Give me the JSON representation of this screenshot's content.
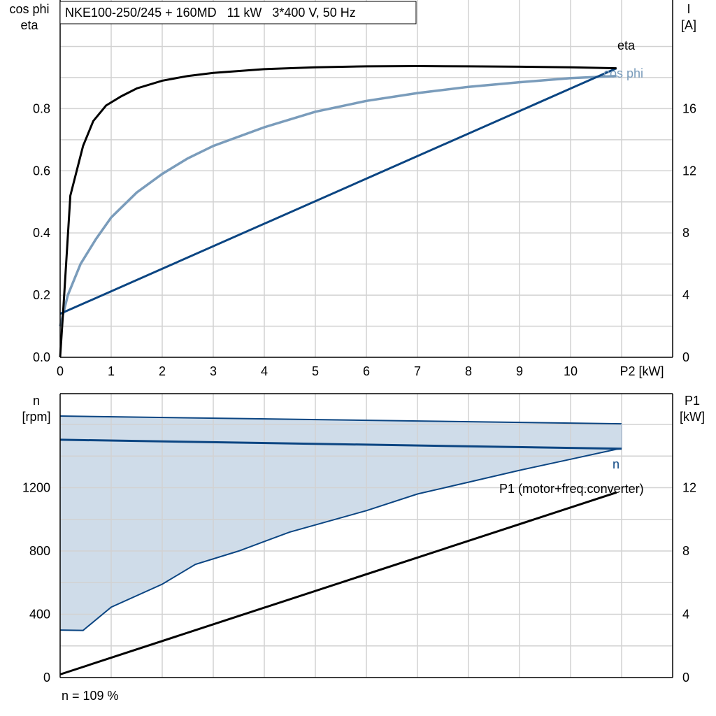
{
  "colors": {
    "eta": "#000000",
    "cos_phi": "#7a9cbb",
    "current": "#0b4582",
    "n": "#0b4582",
    "n_band_fill": "#cfdce9",
    "p1": "#000000",
    "grid": "#d2d2d2"
  },
  "footer": {
    "speed_note": "n = 109 %"
  },
  "chart_data": [
    {
      "type": "line",
      "title": "NKE100-250/245 + 160MD   11 kW   3*400 V, 50 Hz",
      "xlabel": "P2 [kW]",
      "ylabel_left": [
        "cos phi",
        "eta"
      ],
      "ylabel_right": [
        "I",
        "[A]"
      ],
      "xlim": [
        0,
        12
      ],
      "ylim_left": [
        0,
        1.1
      ],
      "ylim_right": [
        0,
        22
      ],
      "x_ticks": [
        "0",
        "1",
        "2",
        "3",
        "4",
        "5",
        "6",
        "7",
        "8",
        "9",
        "10"
      ],
      "y_ticks_left": [
        "0.0",
        "0.2",
        "0.4",
        "0.6",
        "0.8"
      ],
      "y_ticks_left_values": [
        0,
        0.2,
        0.4,
        0.6,
        0.8
      ],
      "y_ticks_right": [
        "0",
        "4",
        "8",
        "12",
        "16"
      ],
      "y_ticks_right_values": [
        0,
        4,
        8,
        12,
        16
      ],
      "grid": true,
      "series": [
        {
          "name": "eta",
          "axis": "left",
          "points": [
            [
              0,
              0
            ],
            [
              0.08,
              0.2
            ],
            [
              0.2,
              0.52
            ],
            [
              0.45,
              0.68
            ],
            [
              0.65,
              0.76
            ],
            [
              0.9,
              0.81
            ],
            [
              1.2,
              0.84
            ],
            [
              1.5,
              0.865
            ],
            [
              2,
              0.89
            ],
            [
              2.5,
              0.905
            ],
            [
              3,
              0.915
            ],
            [
              4,
              0.927
            ],
            [
              5,
              0.933
            ],
            [
              6,
              0.936
            ],
            [
              7,
              0.937
            ],
            [
              8,
              0.936
            ],
            [
              9,
              0.935
            ],
            [
              10,
              0.933
            ],
            [
              10.9,
              0.93
            ]
          ]
        },
        {
          "name": "cos phi",
          "axis": "left",
          "points": [
            [
              0,
              0.1
            ],
            [
              0.15,
              0.2
            ],
            [
              0.4,
              0.3
            ],
            [
              0.7,
              0.38
            ],
            [
              1,
              0.45
            ],
            [
              1.5,
              0.53
            ],
            [
              2,
              0.59
            ],
            [
              2.5,
              0.64
            ],
            [
              3,
              0.68
            ],
            [
              4,
              0.74
            ],
            [
              5,
              0.79
            ],
            [
              6,
              0.825
            ],
            [
              7,
              0.85
            ],
            [
              8,
              0.87
            ],
            [
              9,
              0.885
            ],
            [
              10,
              0.898
            ],
            [
              10.9,
              0.905
            ]
          ]
        },
        {
          "name": "",
          "axis": "right",
          "points": [
            [
              0,
              2.8
            ],
            [
              10.9,
              18.6
            ]
          ]
        }
      ]
    },
    {
      "type": "line",
      "title": "",
      "xlabel": "",
      "ylabel_left": [
        "n",
        "[rpm]"
      ],
      "ylabel_right": [
        "P1",
        "[kW]"
      ],
      "xlim": [
        0,
        12
      ],
      "ylim_left": [
        0,
        1600
      ],
      "ylim_right": [
        0,
        16
      ],
      "y_ticks_left": [
        "0",
        "400",
        "800",
        "1200"
      ],
      "y_ticks_left_values": [
        0,
        400,
        800,
        1200
      ],
      "y_ticks_right": [
        "0",
        "4",
        "8",
        "12"
      ],
      "y_ticks_right_values": [
        0,
        4,
        8,
        12
      ],
      "grid": true,
      "band": {
        "upper": [
          [
            0,
            1653
          ],
          [
            11,
            1604
          ]
        ],
        "lower": [
          [
            0,
            300
          ],
          [
            0.45,
            298
          ],
          [
            1,
            445
          ],
          [
            2,
            590
          ],
          [
            2.65,
            715
          ],
          [
            3.5,
            800
          ],
          [
            4.5,
            920
          ],
          [
            6,
            1055
          ],
          [
            7,
            1160
          ],
          [
            8,
            1235
          ],
          [
            9,
            1310
          ],
          [
            10,
            1380
          ],
          [
            10.9,
            1443
          ],
          [
            11,
            1446
          ]
        ]
      },
      "series": [
        {
          "name": "n",
          "axis": "left",
          "points": [
            [
              0,
              1503
            ],
            [
              11,
              1446
            ]
          ]
        },
        {
          "name": "P1 (motor+freq.converter)",
          "axis": "right",
          "points": [
            [
              0,
              0.2
            ],
            [
              10.9,
              11.7
            ]
          ]
        }
      ]
    }
  ]
}
